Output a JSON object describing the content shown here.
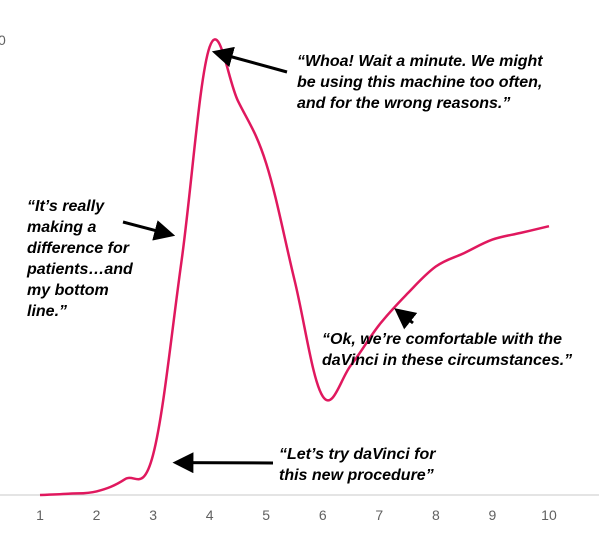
{
  "chart_data": {
    "type": "line",
    "x": [
      1,
      1.5,
      2,
      2.5,
      3,
      3.5,
      4,
      4.5,
      5,
      5.5,
      6,
      6.5,
      7,
      7.5,
      8,
      8.5,
      9,
      9.5,
      10
    ],
    "y": [
      0,
      0.3,
      0.8,
      3.5,
      9,
      52,
      100,
      88,
      74,
      48,
      22,
      29,
      38,
      45,
      51,
      54,
      57,
      58.5,
      60
    ],
    "xticks": [
      "1",
      "2",
      "3",
      "4",
      "5",
      "6",
      "7",
      "8",
      "9",
      "10"
    ],
    "partial_ytick": "0",
    "xlim": [
      0.5,
      10.5
    ],
    "ylim": [
      0,
      100
    ],
    "grid": false,
    "line_color": "#e0185e",
    "annotations": [
      {
        "lines": [
          "“Whoa! Wait a minute. We might",
          "be using this machine too often,",
          "and for the wrong reasons.”"
        ],
        "arrow_to": [
          4,
          100
        ]
      },
      {
        "lines": [
          "“It’s really",
          "making a",
          "difference for",
          "patients…and",
          "my bottom",
          "line.”"
        ],
        "arrow_to": [
          3.5,
          60
        ]
      },
      {
        "lines": [
          "“Ok, we’re comfortable with the",
          "daVinci in these circumstances.”"
        ],
        "arrow_to": [
          7.4,
          44
        ]
      },
      {
        "lines": [
          "“Let’s try daVinci for",
          "this new procedure”"
        ],
        "arrow_to": [
          3.2,
          7
        ]
      }
    ]
  }
}
